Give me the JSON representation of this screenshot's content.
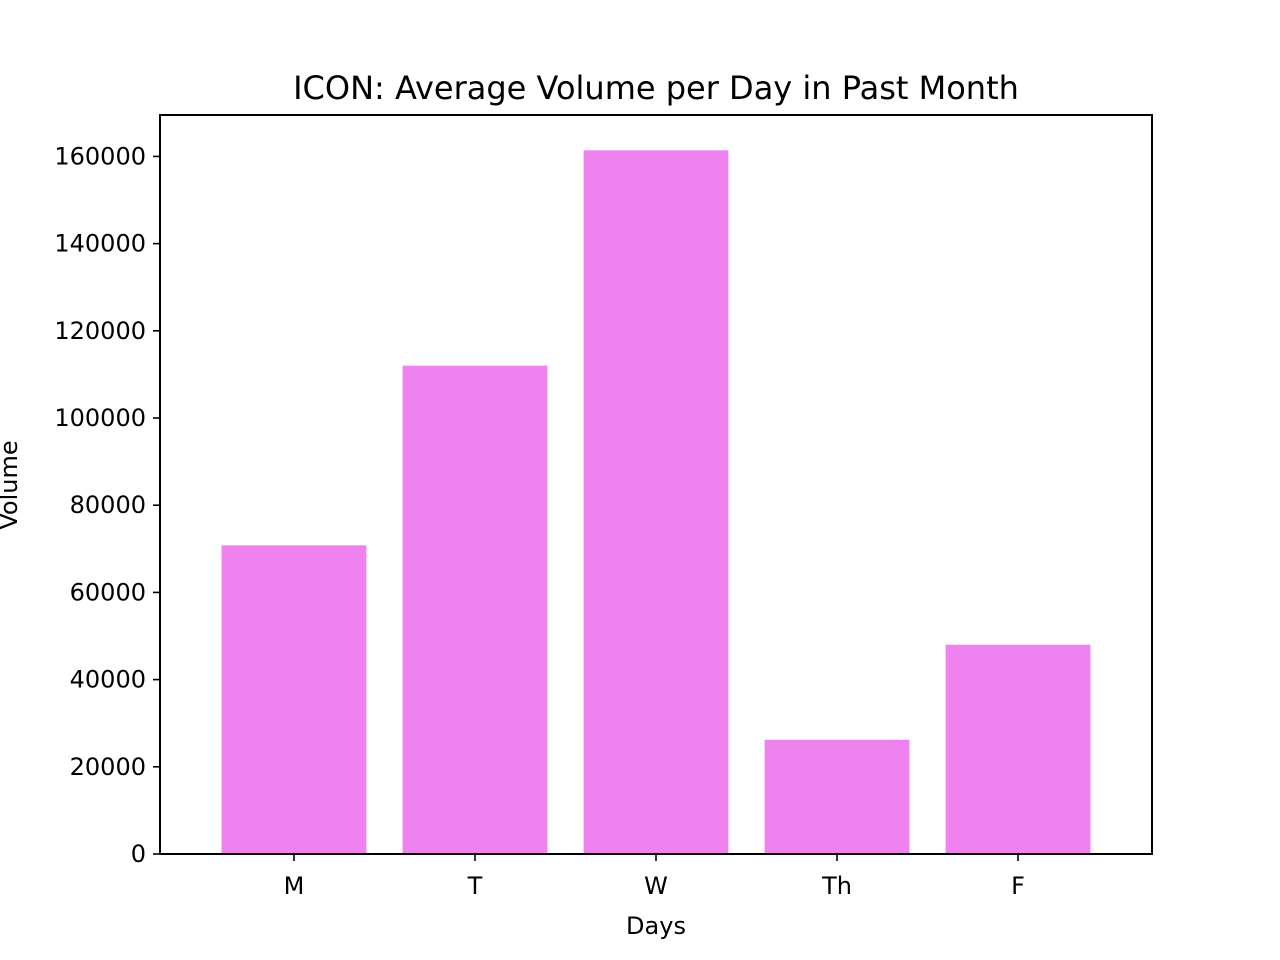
{
  "chart_data": {
    "type": "bar",
    "title": "ICON: Average Volume per Day in Past Month",
    "xlabel": "Days",
    "ylabel": "Volume",
    "categories": [
      "M",
      "T",
      "W",
      "Th",
      "F"
    ],
    "values": [
      70800,
      112000,
      161400,
      26200,
      48000
    ],
    "ylim": [
      0,
      169500
    ],
    "yticks": [
      0,
      20000,
      40000,
      60000,
      80000,
      100000,
      120000,
      140000,
      160000
    ],
    "bar_color": "#ee82ee",
    "grid": false,
    "legend": "none"
  }
}
